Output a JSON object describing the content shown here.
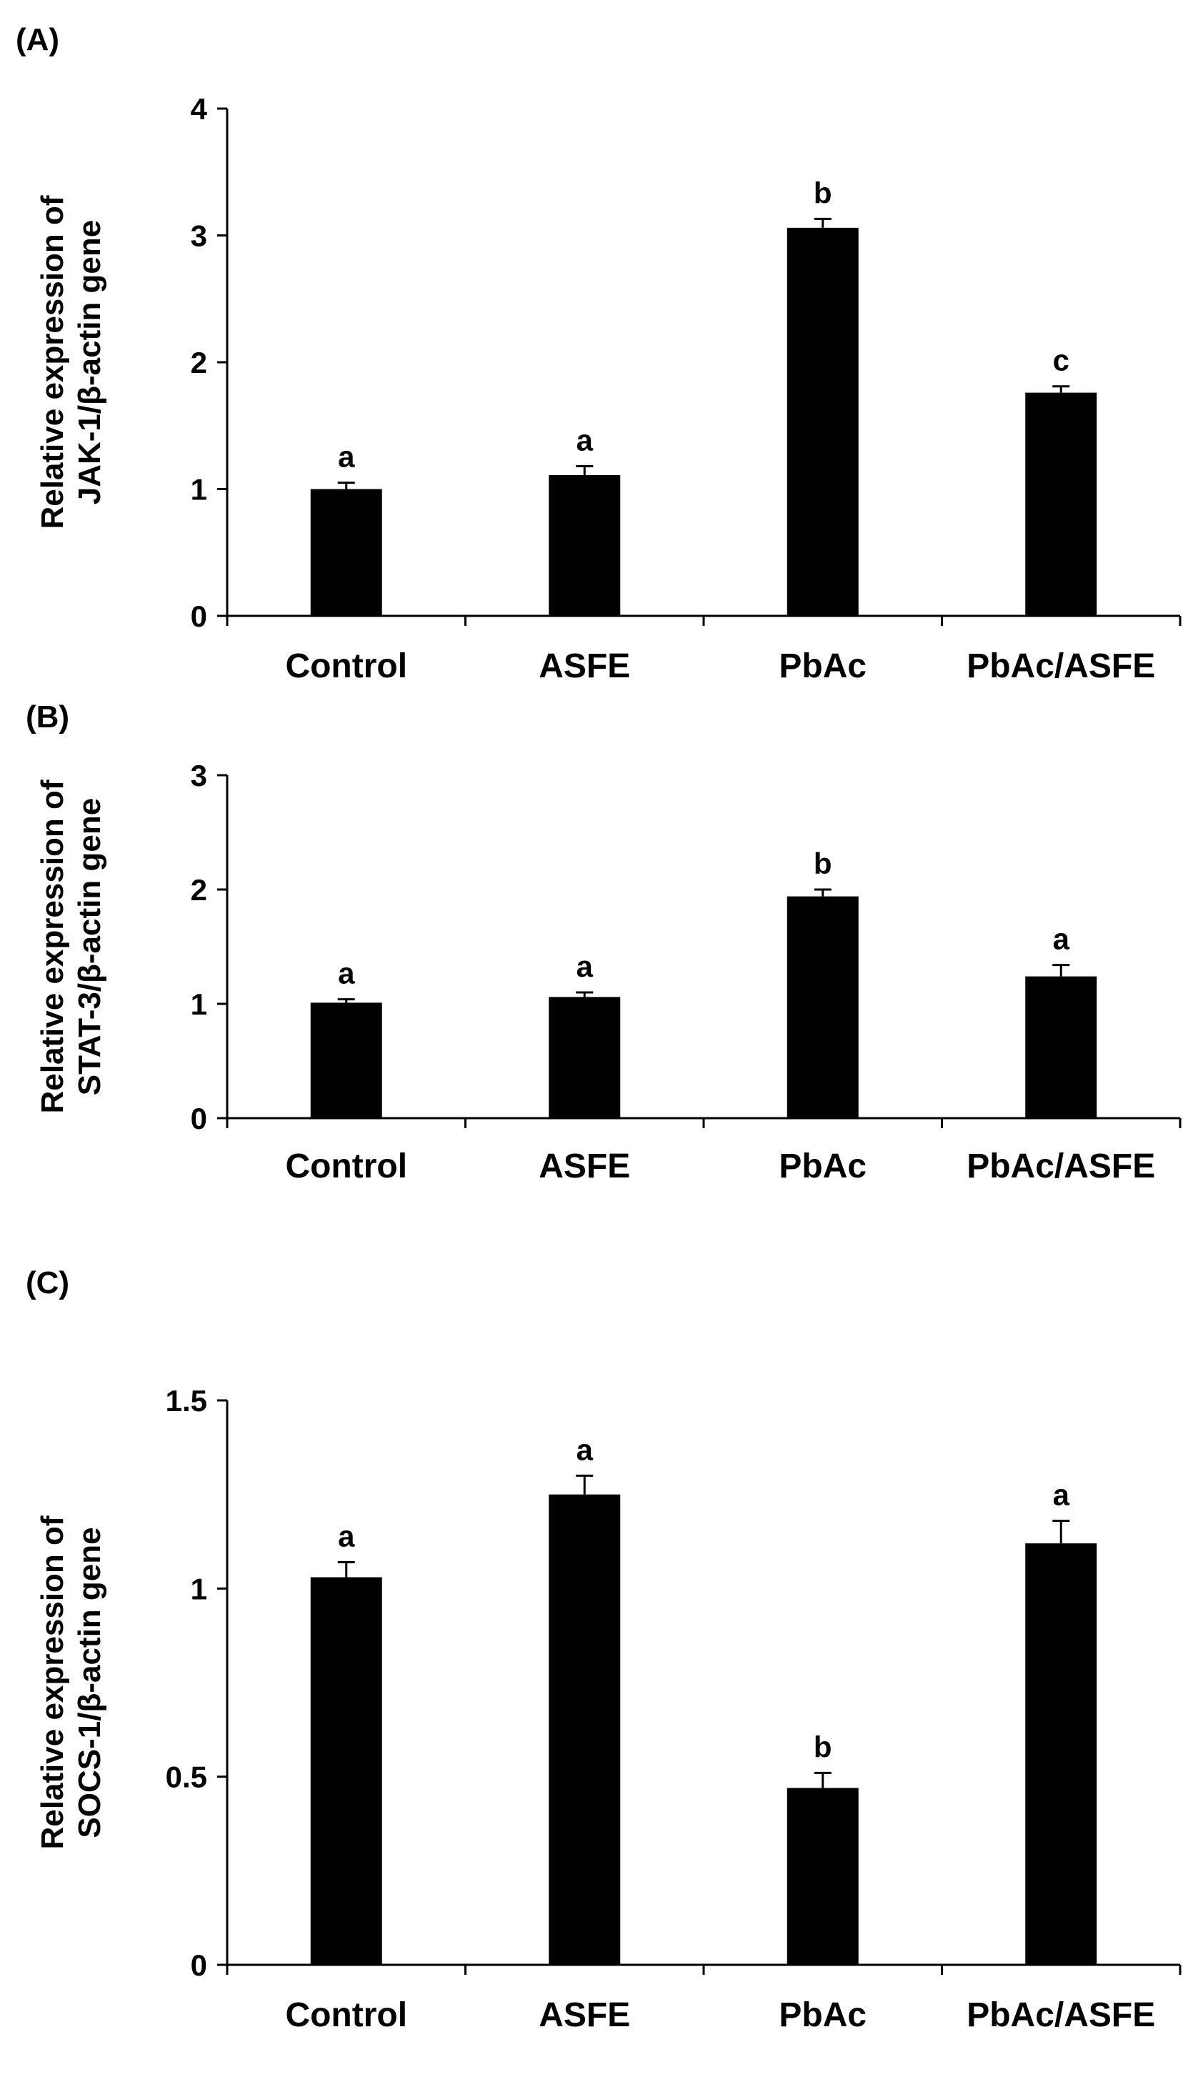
{
  "colors": {
    "bar": "#000000",
    "axis": "#000000",
    "background": "#ffffff"
  },
  "chart_data": [
    {
      "type": "bar",
      "panel": "(A)",
      "title": "",
      "xlabel": "",
      "ylabel": "Relative expression of",
      "ylabel2": "JAK-1/β-actin gene",
      "categories": [
        "Control",
        "ASFE",
        "PbAc",
        "PbAc/ASFE"
      ],
      "values": [
        1.0,
        1.11,
        3.06,
        1.76
      ],
      "errors": [
        0.05,
        0.07,
        0.07,
        0.05
      ],
      "significance": [
        "a",
        "a",
        "b",
        "c"
      ],
      "ylim": [
        0,
        4
      ],
      "yticks": [
        0,
        1,
        2,
        3,
        4
      ],
      "ytick_labels": [
        "0",
        "1",
        "2",
        "3",
        "4"
      ],
      "grid": false
    },
    {
      "type": "bar",
      "panel": "(B)",
      "title": "",
      "xlabel": "",
      "ylabel": "Relative expression of",
      "ylabel2": "STAT-3/β-actin gene",
      "categories": [
        "Control",
        "ASFE",
        "PbAc",
        "PbAc/ASFE"
      ],
      "values": [
        1.01,
        1.06,
        1.94,
        1.24
      ],
      "errors": [
        0.03,
        0.04,
        0.06,
        0.1
      ],
      "significance": [
        "a",
        "a",
        "b",
        "a"
      ],
      "ylim": [
        0,
        3
      ],
      "yticks": [
        0,
        1,
        2,
        3
      ],
      "ytick_labels": [
        "0",
        "1",
        "2",
        "3"
      ],
      "grid": false
    },
    {
      "type": "bar",
      "panel": "(C)",
      "title": "",
      "xlabel": "",
      "ylabel": "Relative expression of",
      "ylabel2": "SOCS-1/β-actin gene",
      "categories": [
        "Control",
        "ASFE",
        "PbAc",
        "PbAc/ASFE"
      ],
      "values": [
        1.03,
        1.25,
        0.47,
        1.12
      ],
      "errors": [
        0.04,
        0.05,
        0.04,
        0.06
      ],
      "significance": [
        "a",
        "a",
        "b",
        "a"
      ],
      "ylim": [
        0,
        1.5
      ],
      "yticks": [
        0,
        0.5,
        1,
        1.5
      ],
      "ytick_labels": [
        "0",
        "0.5",
        "1",
        "1.5"
      ],
      "grid": false
    }
  ]
}
